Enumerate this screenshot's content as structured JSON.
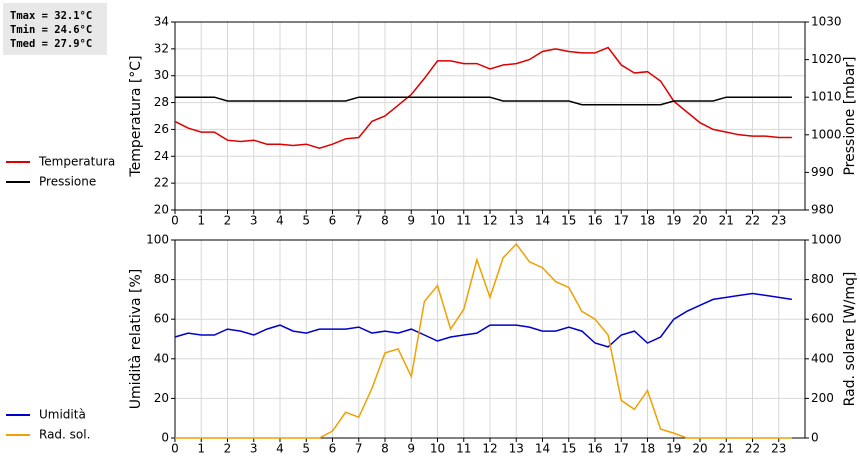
{
  "chart_data": [
    {
      "type": "line",
      "annotations": [
        "Tmax = 32.1°C",
        "Tmin = 24.6°C",
        "Tmed = 27.9°C"
      ],
      "y_label": "Temperatura [°C]",
      "y2_label": "Pressione [mbar]",
      "x": [
        0,
        0.5,
        1,
        1.5,
        2,
        2.5,
        3,
        3.5,
        4,
        4.5,
        5,
        5.5,
        6,
        6.5,
        7,
        7.5,
        8,
        8.5,
        9,
        9.5,
        10,
        10.5,
        11,
        11.5,
        12,
        12.5,
        13,
        13.5,
        14,
        14.5,
        15,
        15.5,
        16,
        16.5,
        17,
        17.5,
        18,
        18.5,
        19,
        19.5,
        20,
        20.5,
        21,
        21.5,
        22,
        22.5,
        23,
        23.5
      ],
      "xlim": [
        0,
        24
      ],
      "xticks": [
        0,
        1,
        2,
        3,
        4,
        5,
        6,
        7,
        8,
        9,
        10,
        11,
        12,
        13,
        14,
        15,
        16,
        17,
        18,
        19,
        20,
        21,
        22,
        23
      ],
      "ylim": [
        20,
        34
      ],
      "yticks": [
        20,
        22,
        24,
        26,
        28,
        30,
        32,
        34
      ],
      "y2lim": [
        980,
        1030
      ],
      "y2ticks": [
        980,
        990,
        1000,
        1010,
        1020,
        1030
      ],
      "grid": true,
      "series": [
        {
          "name": "Temperatura",
          "color": "#dd0000",
          "values": [
            26.6,
            26.1,
            25.8,
            25.8,
            25.2,
            25.1,
            25.2,
            24.9,
            24.9,
            24.8,
            24.9,
            24.6,
            24.9,
            25.3,
            25.4,
            26.6,
            27.0,
            27.8,
            28.6,
            29.8,
            31.1,
            31.1,
            30.9,
            30.9,
            30.5,
            30.8,
            30.9,
            31.2,
            31.8,
            32.0,
            31.8,
            31.7,
            31.7,
            32.1,
            30.8,
            30.2,
            30.3,
            29.6,
            28.1,
            27.3,
            26.5,
            26.0,
            25.8,
            25.6,
            25.5,
            25.5,
            25.4,
            25.4
          ]
        },
        {
          "name": "Pressione",
          "color": "#000000",
          "axis": "y2",
          "values": [
            1010,
            1010,
            1010,
            1010,
            1009,
            1009,
            1009,
            1009,
            1009,
            1009,
            1009,
            1009,
            1009,
            1009,
            1010,
            1010,
            1010,
            1010,
            1010,
            1010,
            1010,
            1010,
            1010,
            1010,
            1010,
            1009,
            1009,
            1009,
            1009,
            1009,
            1009,
            1008,
            1008,
            1008,
            1008,
            1008,
            1008,
            1008,
            1009,
            1009,
            1009,
            1009,
            1010,
            1010,
            1010,
            1010,
            1010,
            1010
          ]
        }
      ]
    },
    {
      "type": "line",
      "y_label": "Umidità relativa [%]",
      "y2_label": "Rad. solare [W/mq]",
      "x": [
        0,
        0.5,
        1,
        1.5,
        2,
        2.5,
        3,
        3.5,
        4,
        4.5,
        5,
        5.5,
        6,
        6.5,
        7,
        7.5,
        8,
        8.5,
        9,
        9.5,
        10,
        10.5,
        11,
        11.5,
        12,
        12.5,
        13,
        13.5,
        14,
        14.5,
        15,
        15.5,
        16,
        16.5,
        17,
        17.5,
        18,
        18.5,
        19,
        19.5,
        20,
        20.5,
        21,
        21.5,
        22,
        22.5,
        23,
        23.5
      ],
      "xlim": [
        0,
        24
      ],
      "xticks": [
        0,
        1,
        2,
        3,
        4,
        5,
        6,
        7,
        8,
        9,
        10,
        11,
        12,
        13,
        14,
        15,
        16,
        17,
        18,
        19,
        20,
        21,
        22,
        23
      ],
      "ylim": [
        0,
        100
      ],
      "yticks": [
        0,
        20,
        40,
        60,
        80,
        100
      ],
      "y2lim": [
        0,
        1000
      ],
      "y2ticks": [
        0,
        200,
        400,
        600,
        800,
        1000
      ],
      "grid": true,
      "series": [
        {
          "name": "Umidità",
          "color": "#0000cc",
          "values": [
            51,
            53,
            52,
            52,
            55,
            54,
            52,
            55,
            57,
            54,
            53,
            55,
            55,
            55,
            56,
            53,
            54,
            53,
            55,
            52,
            49,
            51,
            52,
            53,
            57,
            57,
            57,
            56,
            54,
            54,
            56,
            54,
            48,
            46,
            52,
            54,
            48,
            51,
            60,
            64,
            67,
            70,
            71,
            72,
            73,
            72,
            71,
            70
          ]
        },
        {
          "name": "Rad. sol.",
          "color": "#f0a000",
          "axis": "y2",
          "values": [
            0,
            0,
            0,
            0,
            0,
            0,
            0,
            0,
            0,
            0,
            0,
            0,
            35,
            130,
            105,
            250,
            430,
            450,
            310,
            690,
            770,
            550,
            650,
            900,
            710,
            910,
            980,
            890,
            860,
            790,
            760,
            640,
            600,
            520,
            190,
            145,
            240,
            45,
            25,
            0,
            0,
            0,
            0,
            0,
            0,
            0,
            0,
            0
          ]
        }
      ]
    }
  ]
}
